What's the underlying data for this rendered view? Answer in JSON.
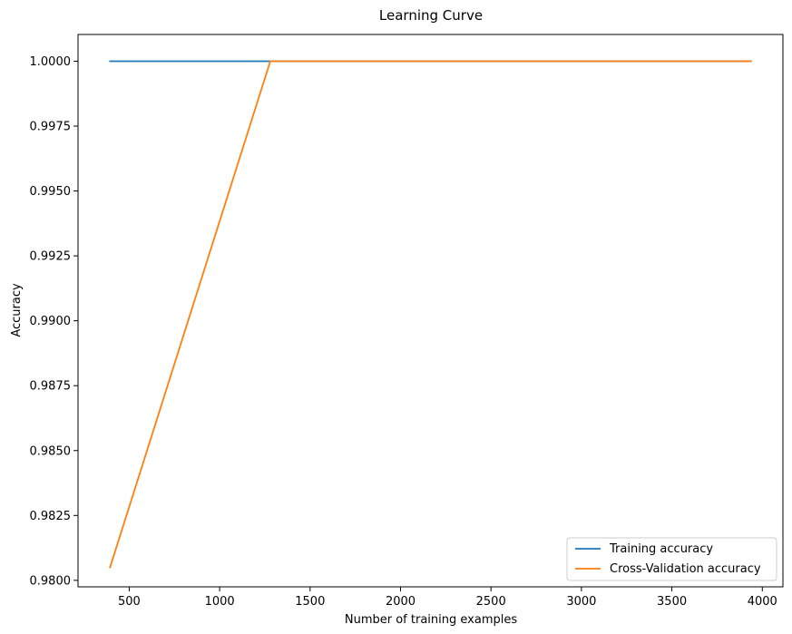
{
  "chart_data": {
    "type": "line",
    "title": "Learning Curve",
    "xlabel": "Number of training examples",
    "ylabel": "Accuracy",
    "x": [
      394,
      1280,
      2165,
      3051,
      3937
    ],
    "xlim": [
      217,
      4114
    ],
    "ylim": [
      0.97975,
      1.00103
    ],
    "xticks": [
      500,
      1000,
      1500,
      2000,
      2500,
      3000,
      3500,
      4000
    ],
    "yticks": [
      0.98,
      0.9825,
      0.985,
      0.9875,
      0.99,
      0.9925,
      0.995,
      0.9975,
      1.0
    ],
    "ytick_labels": [
      "0.9800",
      "0.9825",
      "0.9850",
      "0.9875",
      "0.9900",
      "0.9925",
      "0.9950",
      "0.9975",
      "1.0000"
    ],
    "series": [
      {
        "name": "Training accuracy",
        "color": "#1f77b4",
        "values": [
          1.0,
          1.0,
          1.0,
          1.0,
          1.0
        ]
      },
      {
        "name": "Cross-Validation accuracy",
        "color": "#ff7f0e",
        "values": [
          0.9805,
          1.0,
          1.0,
          1.0,
          1.0
        ]
      }
    ],
    "grid": false,
    "legend": "lower-right"
  }
}
